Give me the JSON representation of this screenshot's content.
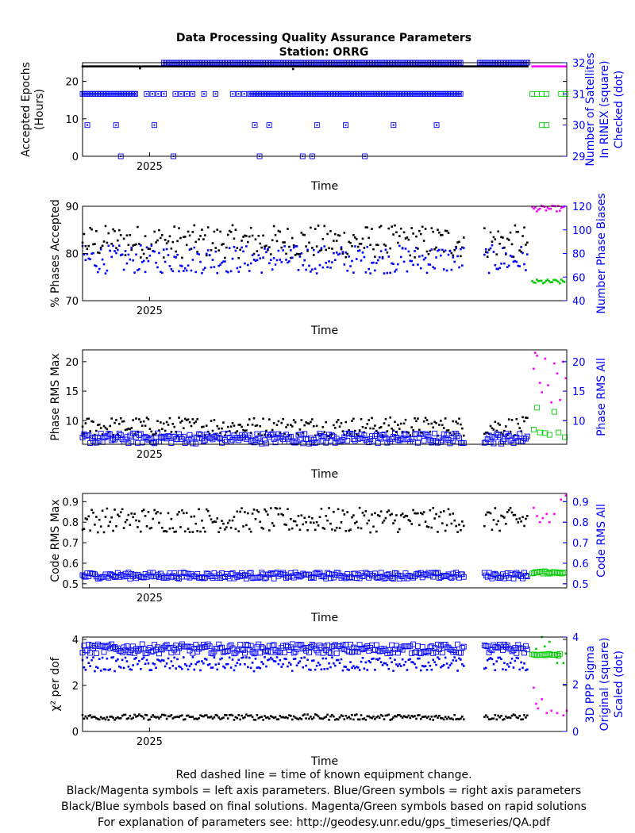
{
  "title_line1": "Data Processing Quality Assurance Parameters",
  "title_line2": "Station: ORRG",
  "footer": [
    "Red dashed line = time of known equipment change.",
    "Black/Magenta symbols = left axis parameters. Blue/Green symbols = right axis parameters",
    "Black/Blue symbols based on final solutions.  Magenta/Green symbols based on rapid solutions",
    "For explanation of parameters see: http://geodesy.unr.edu/gps_timeseries/QA.pdf"
  ],
  "colors": {
    "final_left": "#000000",
    "final_right": "#0000ff",
    "rapid_left": "#ff00ff",
    "rapid_right": "#00cc00"
  },
  "chart_data": [
    {
      "type": "scatter",
      "xlabel": "Time",
      "xtick_labels": [
        "2025"
      ],
      "ylabel_left": [
        "Accepted Epochs",
        "(Hours)"
      ],
      "ylabel_right": [
        "Number of Satellites",
        "In RINEX (square)",
        "Checked (dot)"
      ],
      "ylim_left": [
        0,
        25
      ],
      "yticks_left": [
        0,
        10,
        20
      ],
      "ylim_right": [
        29,
        32
      ],
      "yticks_right": [
        29,
        30,
        31,
        32
      ],
      "series": [
        {
          "axis": "left",
          "source": "final",
          "marker": "dot",
          "segments": [
            {
              "x_range": [
                2024.83,
                2025.76
              ],
              "n": 300,
              "value": 24.0,
              "dips": [
                {
                  "x": 2024.95,
                  "value": 23.5
                },
                {
                  "x": 2025.27,
                  "value": 23.3
                }
              ]
            }
          ]
        },
        {
          "axis": "left",
          "source": "rapid",
          "marker": "dot",
          "segments": [
            {
              "x_range": [
                2025.77,
                2025.84
              ],
              "n": 18,
              "value": 24.0
            }
          ]
        },
        {
          "axis": "right",
          "source": "final",
          "marker": "square+dot",
          "segments": [
            {
              "x_range": [
                2024.83,
                2024.94
              ],
              "value": 31,
              "dense": true
            },
            {
              "x_range": [
                2024.94,
                2025.18
              ],
              "value": 31,
              "dense": false
            },
            {
              "x_range": [
                2025.18,
                2025.62
              ],
              "value": 31,
              "dense": true
            },
            {
              "x_range": [
                2025.66,
                2025.76
              ],
              "value": 32,
              "dense": true
            },
            {
              "x_range": [
                2025.0,
                2025.62
              ],
              "value": 32,
              "dense": true
            }
          ],
          "extra_points": [
            [
              2024.84,
              30
            ],
            [
              2024.9,
              30
            ],
            [
              2024.98,
              30
            ],
            [
              2025.19,
              30
            ],
            [
              2025.22,
              30
            ],
            [
              2025.32,
              30
            ],
            [
              2025.38,
              30
            ],
            [
              2025.48,
              30
            ],
            [
              2025.57,
              30
            ],
            [
              2024.91,
              29
            ],
            [
              2025.02,
              29
            ],
            [
              2025.2,
              29
            ],
            [
              2025.29,
              29
            ],
            [
              2025.31,
              29
            ],
            [
              2025.42,
              29
            ]
          ]
        },
        {
          "axis": "right",
          "source": "rapid",
          "marker": "square",
          "points": [
            [
              2025.77,
              31
            ],
            [
              2025.78,
              31
            ],
            [
              2025.79,
              31
            ],
            [
              2025.8,
              31
            ],
            [
              2025.83,
              31
            ],
            [
              2025.84,
              31
            ],
            [
              2025.79,
              30
            ],
            [
              2025.8,
              30
            ]
          ]
        }
      ]
    },
    {
      "type": "scatter",
      "xlabel": "Time",
      "xtick_labels": [
        "2025"
      ],
      "ylabel_left": [
        "% Phases Accepted"
      ],
      "ylabel_right": [
        "Number Phase Biases"
      ],
      "ylim_left": [
        70,
        90
      ],
      "yticks_left": [
        70,
        80,
        90
      ],
      "ylim_right": [
        40,
        120
      ],
      "yticks_right": [
        40,
        60,
        80,
        100,
        120
      ],
      "series": [
        {
          "axis": "left",
          "source": "final",
          "marker": "dot",
          "center": 82.5,
          "spread": 3.5,
          "x_ranges": [
            [
              2024.83,
              2025.63
            ],
            [
              2025.67,
              2025.76
            ]
          ]
        },
        {
          "axis": "right",
          "source": "final",
          "marker": "dot",
          "center": 75,
          "spread": 12,
          "x_ranges": [
            [
              2024.83,
              2025.63
            ],
            [
              2025.67,
              2025.76
            ]
          ]
        },
        {
          "axis": "left",
          "source": "rapid",
          "marker": "dot",
          "center": 89.5,
          "spread": 0.6,
          "x_ranges": [
            [
              2025.77,
              2025.84
            ]
          ]
        },
        {
          "axis": "right",
          "source": "rapid",
          "marker": "dot",
          "center": 56,
          "spread": 2,
          "x_ranges": [
            [
              2025.77,
              2025.84
            ]
          ]
        }
      ]
    },
    {
      "type": "scatter",
      "xlabel": "Time",
      "xtick_labels": [
        "2025"
      ],
      "ylabel_left": [
        "Phase RMS Max"
      ],
      "ylabel_right": [
        "Phase RMS All"
      ],
      "ylim_left": [
        6,
        22
      ],
      "yticks_left": [
        10,
        15,
        20
      ],
      "ylim_right": [
        6,
        22
      ],
      "yticks_right": [
        10,
        15,
        20
      ],
      "series": [
        {
          "axis": "left",
          "source": "final",
          "marker": "dot",
          "center": 9.0,
          "spread": 1.6,
          "x_ranges": [
            [
              2024.83,
              2025.63
            ],
            [
              2025.67,
              2025.76
            ]
          ]
        },
        {
          "axis": "right",
          "source": "final",
          "marker": "square",
          "center": 7.0,
          "spread": 0.9,
          "x_ranges": [
            [
              2024.83,
              2025.63
            ],
            [
              2025.67,
              2025.76
            ]
          ]
        },
        {
          "axis": "left",
          "source": "rapid",
          "marker": "dot",
          "points": [
            [
              2025.773,
              18.8
            ],
            [
              2025.776,
              21.5
            ],
            [
              2025.78,
              21.0
            ],
            [
              2025.786,
              16.4
            ],
            [
              2025.79,
              14.8
            ],
            [
              2025.797,
              20.5
            ],
            [
              2025.803,
              16.0
            ],
            [
              2025.81,
              13.1
            ],
            [
              2025.816,
              19.7
            ],
            [
              2025.822,
              18.0
            ],
            [
              2025.828,
              13.5
            ],
            [
              2025.834,
              20.0
            ],
            [
              2025.84,
              17.2
            ]
          ]
        },
        {
          "axis": "right",
          "source": "rapid",
          "marker": "square",
          "points": [
            [
              2025.773,
              8.5
            ],
            [
              2025.78,
              12.2
            ],
            [
              2025.786,
              8.0
            ],
            [
              2025.797,
              7.9
            ],
            [
              2025.806,
              7.6
            ],
            [
              2025.816,
              11.5
            ],
            [
              2025.825,
              8.0
            ],
            [
              2025.838,
              7.2
            ]
          ]
        }
      ]
    },
    {
      "type": "scatter",
      "xlabel": "Time",
      "xtick_labels": [
        "2025"
      ],
      "ylabel_left": [
        "Code RMS Max"
      ],
      "ylabel_right": [
        "Code RMS All"
      ],
      "ylim_left": [
        0.48,
        0.94
      ],
      "yticks_left": [
        0.5,
        0.6,
        0.7,
        0.8,
        0.9
      ],
      "ylim_right": [
        0.48,
        0.94
      ],
      "yticks_right": [
        0.5,
        0.6,
        0.7,
        0.8,
        0.9
      ],
      "series": [
        {
          "axis": "left",
          "source": "final",
          "marker": "dot",
          "center": 0.81,
          "spread": 0.06,
          "x_ranges": [
            [
              2024.83,
              2025.63
            ],
            [
              2025.67,
              2025.76
            ]
          ]
        },
        {
          "axis": "right",
          "source": "final",
          "marker": "square",
          "center": 0.54,
          "spread": 0.015,
          "x_ranges": [
            [
              2024.83,
              2025.63
            ],
            [
              2025.67,
              2025.76
            ]
          ]
        },
        {
          "axis": "left",
          "source": "rapid",
          "marker": "dot",
          "points": [
            [
              2025.773,
              0.87
            ],
            [
              2025.78,
              0.83
            ],
            [
              2025.786,
              0.8
            ],
            [
              2025.792,
              0.82
            ],
            [
              2025.8,
              0.84
            ],
            [
              2025.806,
              0.8
            ],
            [
              2025.816,
              0.84
            ],
            [
              2025.83,
              0.91
            ],
            [
              2025.84,
              0.93
            ]
          ]
        },
        {
          "axis": "right",
          "source": "rapid",
          "marker": "square",
          "center": 0.555,
          "spread": 0.006,
          "x_ranges": [
            [
              2025.77,
              2025.84
            ]
          ]
        }
      ]
    },
    {
      "type": "scatter",
      "xlabel": "Time",
      "xtick_labels": [
        "2025"
      ],
      "ylabel_left": [
        "χ² per dof"
      ],
      "ylabel_right": [
        "3D PPP Sigma",
        "Original (square)",
        "Scaled (dot)"
      ],
      "ylim_left": [
        0,
        4.1
      ],
      "yticks_left": [
        0,
        2,
        4
      ],
      "ylim_right": [
        0,
        4
      ],
      "yticks_right": [
        0,
        2,
        4
      ],
      "series": [
        {
          "axis": "left",
          "source": "final",
          "marker": "dot",
          "center": 0.62,
          "spread": 0.12,
          "x_ranges": [
            [
              2024.83,
              2025.63
            ],
            [
              2025.67,
              2025.76
            ]
          ]
        },
        {
          "axis": "right",
          "source": "final",
          "marker": "square",
          "center": 3.5,
          "spread": 0.2,
          "x_ranges": [
            [
              2024.83,
              2025.63
            ],
            [
              2025.67,
              2025.76
            ]
          ]
        },
        {
          "axis": "right",
          "source": "final",
          "marker": "dot",
          "center": 2.85,
          "spread": 0.3,
          "x_ranges": [
            [
              2024.83,
              2025.63
            ],
            [
              2025.67,
              2025.76
            ]
          ]
        },
        {
          "axis": "left",
          "source": "rapid",
          "marker": "dot",
          "points": [
            [
              2025.773,
              1.9
            ],
            [
              2025.778,
              1.2
            ],
            [
              2025.782,
              1.0
            ],
            [
              2025.79,
              1.4
            ],
            [
              2025.8,
              0.8
            ],
            [
              2025.81,
              0.9
            ],
            [
              2025.822,
              0.8
            ],
            [
              2025.835,
              0.7
            ],
            [
              2025.842,
              0.9
            ]
          ]
        },
        {
          "axis": "right",
          "source": "rapid",
          "marker": "square",
          "center": 3.25,
          "spread": 0.04,
          "x_ranges": [
            [
              2025.77,
              2025.83
            ]
          ]
        },
        {
          "axis": "right",
          "source": "rapid",
          "marker": "dot",
          "points": [
            [
              2025.778,
              3.5
            ],
            [
              2025.79,
              4.0
            ],
            [
              2025.796,
              3.6
            ],
            [
              2025.806,
              3.8
            ],
            [
              2025.822,
              2.9
            ],
            [
              2025.835,
              2.9
            ],
            [
              2025.84,
              3.3
            ]
          ]
        }
      ]
    }
  ]
}
